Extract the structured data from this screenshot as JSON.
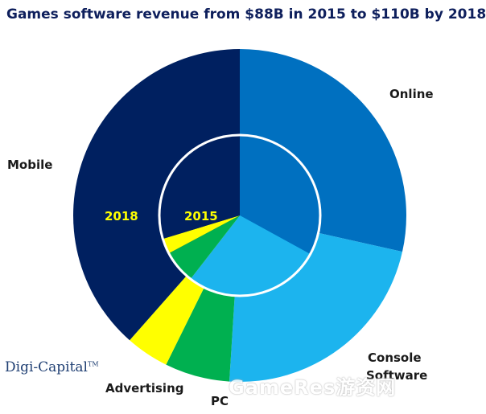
{
  "title": "Games software revenue from $88B in 2015 to $110B by 2018",
  "brand": "Digi-Capital",
  "brand_mark": "TM",
  "watermark": "GameRes游资网",
  "chart_data": {
    "type": "pie",
    "variant": "nested-donut",
    "categories": [
      "Online",
      "Console Software",
      "PC",
      "Advertising",
      "Mobile"
    ],
    "category_labels": {
      "Online": "Online",
      "Console Software_line1": "Console",
      "Console Software_line2": "Software",
      "PC": "PC",
      "Advertising": "Advertising",
      "Mobile": "Mobile"
    },
    "colors": {
      "Online": "#0070c0",
      "Console Software": "#1cb4ee",
      "PC": "#00b050",
      "Advertising": "#ffff00",
      "Mobile": "#002060"
    },
    "series": [
      {
        "name": "2018",
        "role": "outer",
        "values": [
          28.5,
          22.5,
          6.3,
          4.2,
          38.5
        ]
      },
      {
        "name": "2015",
        "role": "inner",
        "values": [
          33.0,
          27.5,
          6.7,
          3.1,
          29.7
        ]
      }
    ],
    "unit": "percent of total revenue",
    "start_angle_deg": 0,
    "direction": "clockwise",
    "series_label_color": "#ffff00",
    "inner_ring_stroke": "#ffffff"
  }
}
